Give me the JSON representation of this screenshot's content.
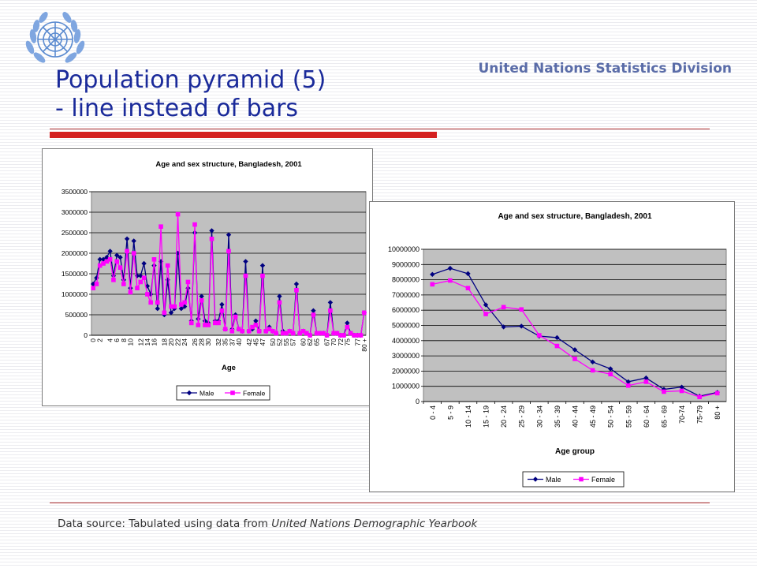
{
  "header": {
    "brand": "United Nations Statistics Division",
    "title_line1": "Population pyramid (5)",
    "title_line2": "- line instead of bars"
  },
  "footer": {
    "source_prefix": "Data source: Tabulated using data from ",
    "source_emph": "United Nations Demographic Yearbook"
  },
  "colors": {
    "male": "#000080",
    "female": "#ff00ff",
    "plot_bg": "#c0c0c0",
    "title_blue": "#1a2a9a",
    "accent_red": "#d42020"
  },
  "chart_data": [
    {
      "type": "line",
      "title": "Age and sex structure, Bangladesh, 2001",
      "xlabel": "Age",
      "ylabel": "",
      "ylim": [
        0,
        3500000
      ],
      "yticks": [
        0,
        500000,
        1000000,
        1500000,
        2000000,
        2500000,
        3000000,
        3500000
      ],
      "x_tick_labels": [
        "0",
        "2",
        "4",
        "6",
        "8",
        "10",
        "12",
        "14",
        "16",
        "18",
        "20",
        "22",
        "24",
        "26",
        "28",
        "30",
        "32",
        "35",
        "37",
        "40",
        "42",
        "45",
        "47",
        "50",
        "52",
        "55",
        "57",
        "60",
        "62",
        "65",
        "67",
        "70",
        "72",
        "75",
        "77",
        "80 +"
      ],
      "legend_position": "bottom",
      "grid": true,
      "series": [
        {
          "name": "Male",
          "values": [
            1250000,
            1400000,
            1850000,
            1850000,
            1900000,
            2050000,
            1450000,
            1950000,
            1900000,
            1350000,
            2350000,
            1150000,
            2300000,
            1450000,
            1450000,
            1750000,
            1200000,
            1000000,
            1700000,
            650000,
            1800000,
            500000,
            1350000,
            550000,
            650000,
            2000000,
            650000,
            700000,
            1150000,
            350000,
            2500000,
            400000,
            950000,
            350000,
            300000,
            2550000,
            350000,
            350000,
            750000,
            150000,
            2450000,
            150000,
            500000,
            150000,
            100000,
            1800000,
            100000,
            150000,
            350000,
            100000,
            1700000,
            100000,
            200000,
            100000,
            50000,
            950000,
            100000,
            50000,
            100000,
            50000,
            1250000,
            50000,
            100000,
            50000,
            0,
            600000,
            50000,
            50000,
            50000,
            0,
            800000,
            50000,
            50000,
            0,
            0,
            300000,
            50000,
            0,
            0,
            0,
            550000
          ]
        },
        {
          "name": "Female",
          "values": [
            1150000,
            1250000,
            1700000,
            1750000,
            1800000,
            1850000,
            1350000,
            1800000,
            1650000,
            1250000,
            2050000,
            1050000,
            2000000,
            1150000,
            1300000,
            1400000,
            1000000,
            800000,
            1850000,
            800000,
            2650000,
            550000,
            1700000,
            700000,
            700000,
            2950000,
            750000,
            800000,
            1300000,
            300000,
            2700000,
            250000,
            850000,
            250000,
            250000,
            2350000,
            300000,
            300000,
            600000,
            150000,
            2050000,
            100000,
            450000,
            150000,
            100000,
            1450000,
            100000,
            200000,
            250000,
            100000,
            1450000,
            100000,
            150000,
            100000,
            50000,
            800000,
            50000,
            50000,
            100000,
            50000,
            1100000,
            50000,
            100000,
            50000,
            0,
            500000,
            50000,
            50000,
            50000,
            0,
            600000,
            50000,
            50000,
            0,
            0,
            200000,
            50000,
            0,
            0,
            0,
            550000
          ]
        }
      ]
    },
    {
      "type": "line",
      "title": "Age and sex structure, Bangladesh, 2001",
      "xlabel": "Age group",
      "ylabel": "",
      "ylim": [
        0,
        10000000
      ],
      "yticks": [
        0,
        1000000,
        2000000,
        3000000,
        4000000,
        5000000,
        6000000,
        7000000,
        8000000,
        9000000,
        10000000
      ],
      "categories": [
        "0 - 4",
        "5 - 9",
        "10 - 14",
        "15 - 19",
        "20 - 24",
        "25 - 29",
        "30 - 34",
        "35 - 39",
        "40 - 44",
        "45 - 49",
        "50 - 54",
        "55 - 59",
        "60 - 64",
        "65 - 69",
        "70-74",
        "75-79",
        "80 +"
      ],
      "legend_position": "bottom",
      "grid": true,
      "series": [
        {
          "name": "Male",
          "values": [
            8350000,
            8750000,
            8400000,
            6350000,
            4900000,
            4950000,
            4300000,
            4200000,
            3400000,
            2600000,
            2150000,
            1300000,
            1550000,
            800000,
            950000,
            350000,
            600000
          ]
        },
        {
          "name": "Female",
          "values": [
            7700000,
            7950000,
            7450000,
            5750000,
            6200000,
            6050000,
            4350000,
            3650000,
            2800000,
            2050000,
            1800000,
            1050000,
            1300000,
            650000,
            700000,
            300000,
            550000
          ]
        }
      ]
    }
  ]
}
